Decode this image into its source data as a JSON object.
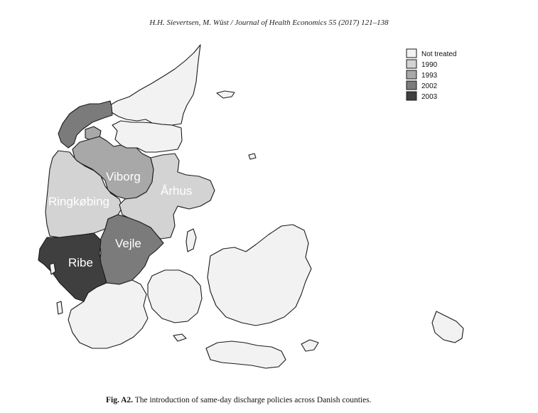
{
  "header": {
    "running_head": "H.H. Sievertsen, M. Wüst / Journal of Health Economics 55 (2017) 121–138"
  },
  "legend": [
    {
      "label": "Not treated",
      "color": "#f2f2f2"
    },
    {
      "label": "1990",
      "color": "#d3d3d3"
    },
    {
      "label": "1993",
      "color": "#a8a8a8"
    },
    {
      "label": "2002",
      "color": "#7b7b7b"
    },
    {
      "label": "2003",
      "color": "#3f3f3f"
    }
  ],
  "counties": [
    {
      "name": "Viborg",
      "year": "1993"
    },
    {
      "name": "Århus",
      "year": "1990"
    },
    {
      "name": "Ringkøbing",
      "year": "1990"
    },
    {
      "name": "Vejle",
      "year": "2002"
    },
    {
      "name": "Ribe",
      "year": "2003"
    }
  ],
  "caption": {
    "prefix": "Fig. A2.",
    "text": "The introduction of same-day discharge policies across Danish counties."
  }
}
